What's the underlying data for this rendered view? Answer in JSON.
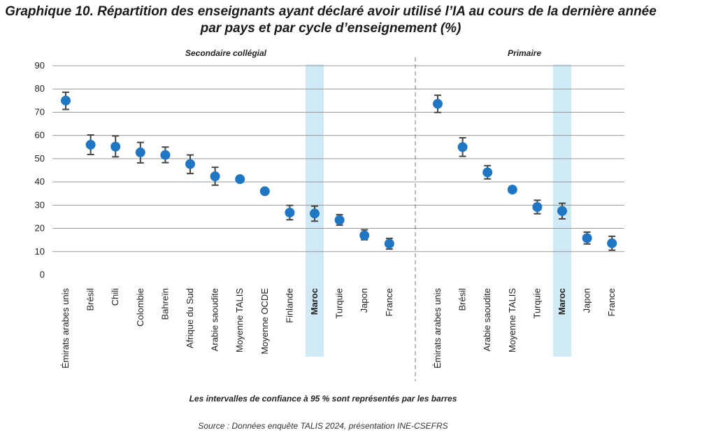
{
  "title_line1": "Graphique 10. Répartition des enseignants ayant déclaré avoir utilisé l’IA au cours de la dernière année",
  "title_line2": "par pays et par cycle d’enseignement (%)",
  "note": "Les intervalles de confiance à 95 % sont représentés par les barres",
  "source": "Source : Données enquête TALIS 2024, présentation INE-CSEFRS",
  "colors": {
    "marker": "#1f77c4",
    "error_bar": "#444444",
    "highlight": "#cfe9f5",
    "grid": "#999999"
  },
  "chart_data": {
    "type": "scatter",
    "ylim": [
      0,
      90
    ],
    "yticks": [
      0,
      10,
      20,
      30,
      40,
      50,
      60,
      70,
      80,
      90
    ],
    "grid": true,
    "highlight_category": "Maroc",
    "panels": [
      {
        "title": "Secondaire collégial",
        "categories": [
          "Émirats arabes unis",
          "Brésil",
          "Chili",
          "Colombie",
          "Bahreïn",
          "Afrique du Sud",
          "Arabie saoudite",
          "Moyenne TALIS",
          "Moyenne OCDE",
          "Finlande",
          "Maroc",
          "Turquie",
          "Japon",
          "France"
        ],
        "values": [
          75,
          56,
          55.2,
          52.7,
          51.6,
          47.7,
          42.4,
          41.2,
          36,
          26.8,
          26.4,
          23.6,
          17,
          13.4
        ],
        "ci_low": [
          71.2,
          51.8,
          50.8,
          48.2,
          48.3,
          43.6,
          38.6,
          41.2,
          36,
          23.7,
          23.1,
          21.4,
          15.1,
          11.1
        ],
        "ci_high": [
          78.6,
          60.2,
          59.8,
          57,
          55,
          51.6,
          46.3,
          41.2,
          36,
          29.9,
          29.6,
          25.9,
          19.4,
          15.7
        ]
      },
      {
        "title": "Primaire",
        "categories": [
          "Émirats arabes unis",
          "Brésil",
          "Arabie saoudite",
          "Moyenne TALIS",
          "Turquie",
          "Maroc",
          "Japon",
          "France"
        ],
        "values": [
          73.6,
          55,
          44.1,
          36.7,
          29.2,
          27.5,
          15.8,
          13.6
        ],
        "ci_low": [
          69.9,
          51,
          41.3,
          36.7,
          26.3,
          24.1,
          13.3,
          10.6
        ],
        "ci_high": [
          77.3,
          59,
          47,
          36.7,
          32.1,
          30.8,
          18.4,
          16.6
        ]
      }
    ]
  }
}
